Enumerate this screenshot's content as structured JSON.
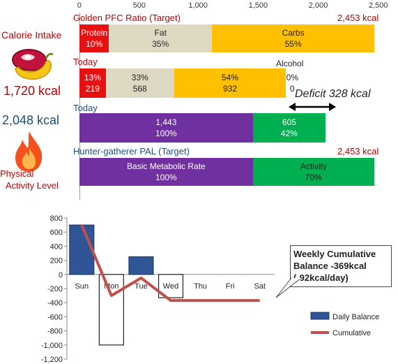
{
  "chart_data": [
    {
      "type": "bar",
      "orientation": "horizontal-stacked",
      "xlim": [
        0,
        2500
      ],
      "ticks": [
        "0",
        "500",
        "1,000",
        "1,500",
        "2,000",
        "2,500"
      ],
      "tick_values": [
        0,
        500,
        1000,
        1500,
        2000,
        2500
      ],
      "rows": [
        {
          "label": "Golden PFC Ratio (Target)",
          "total_label": "2,453 kcal",
          "segments": [
            {
              "name": "Protein",
              "value": 245,
              "text1": "Protein",
              "text2": "10%",
              "color": "#e81010"
            },
            {
              "name": "Fat",
              "value": 859,
              "text1": "Fat",
              "text2": "35%",
              "color": "#ddd9c3"
            },
            {
              "name": "Carbs",
              "value": 1349,
              "text1": "Carbs",
              "text2": "55%",
              "color": "#ffc000"
            }
          ]
        },
        {
          "label": "Today",
          "total_label": "",
          "segments": [
            {
              "name": "Protein",
              "value": 219,
              "text1": "13%",
              "text2": "219",
              "color": "#e81010"
            },
            {
              "name": "Fat",
              "value": 568,
              "text1": "33%",
              "text2": "568",
              "color": "#ddd9c3"
            },
            {
              "name": "Carbs",
              "value": 932,
              "text1": "54%",
              "text2": "932",
              "color": "#ffc000"
            },
            {
              "name": "Alcohol",
              "value": 0,
              "text1": "0%",
              "text2": "0",
              "color": "#ffffff"
            }
          ]
        },
        {
          "label": "Today",
          "total_label": "",
          "segments": [
            {
              "name": "Basic Metabolic Rate",
              "value": 1443,
              "text1": "1,443",
              "text2": "100%",
              "color": "#7030a0"
            },
            {
              "name": "Activity",
              "value": 605,
              "text1": "605",
              "text2": "42%",
              "color": "#00b050"
            }
          ]
        },
        {
          "label": "Hunter-gatherer PAL (Target)",
          "total_label": "2,453 kcal",
          "segments": [
            {
              "name": "Basic Metabolic Rate",
              "value": 1443,
              "text1": "Basic Metabolic Rate",
              "text2": "100%",
              "color": "#7030a0"
            },
            {
              "name": "Activity",
              "value": 1010,
              "text1": "Activity",
              "text2": "70%",
              "color": "#00b050"
            }
          ]
        }
      ],
      "annotations": {
        "alcohol_label": "Alcohol",
        "deficit": "Deficit 328 kcal"
      }
    },
    {
      "type": "bar",
      "categories": [
        "Sun",
        "Mon",
        "Tue",
        "Wed",
        "Thu",
        "Fri",
        "Sat"
      ],
      "ylim": [
        -1200,
        800
      ],
      "yticks": [
        800,
        600,
        400,
        200,
        0,
        -200,
        -400,
        -600,
        -800,
        -1000,
        -1200
      ],
      "ytick_labels": [
        "800",
        "600",
        "400",
        "200",
        "0",
        "-200",
        "-400",
        "-600",
        "-800",
        "-1,000",
        "-1,200"
      ],
      "series": [
        {
          "name": "Daily Balance",
          "kind": "bar",
          "values": [
            700,
            -1000,
            250,
            -330,
            0,
            0,
            0
          ]
        },
        {
          "name": "Cumulative",
          "kind": "line",
          "values": [
            700,
            -300,
            -50,
            -370,
            -370,
            -370,
            -370
          ]
        }
      ],
      "legend_position": "bottom-right",
      "callout": "Weekly Cumulative Balance -369kcal (-92kcal/day)"
    }
  ],
  "left_panel": {
    "intake_title": "Calorie Intake",
    "intake_value": "1,720 kcal",
    "activity_value": "2,048 kcal",
    "activity_title_line1": "Physical",
    "activity_title_line2": "Activity Level"
  },
  "colors": {
    "red_text": "#c00000",
    "blue_text": "#1f4e79",
    "bar_blue": "#2f5597",
    "line_red": "#c0504d"
  }
}
